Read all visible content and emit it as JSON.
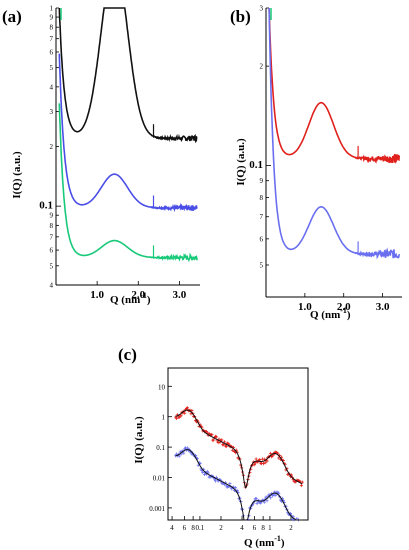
{
  "figure": {
    "panels": [
      {
        "label": "(a)"
      },
      {
        "label": "(b)"
      },
      {
        "label": "(c)"
      }
    ]
  },
  "colors": {
    "black": "#111111",
    "blue": "#4a4ee6",
    "green": "#19c97a",
    "red": "#e0201c",
    "lightblue": "#6a6ff0"
  },
  "chart_data": [
    {
      "type": "line",
      "panel": "(a)",
      "xlabel": "Q (nm",
      "xlabel_sup": "-1",
      "xlabel_tail": ")",
      "ylabel": "I(Q) (a.u.)",
      "xlim": [
        0,
        3.5
      ],
      "xscale": "linear",
      "yscale": "log",
      "ylim": [
        0.04,
        1.0
      ],
      "xticks": [
        {
          "v": 1.0,
          "t": "1.0"
        },
        {
          "v": 2.0,
          "t": "2.0"
        },
        {
          "v": 3.0,
          "t": "3.0"
        }
      ],
      "yticks": [
        {
          "v": 1.0,
          "t": "1"
        },
        {
          "v": 0.9,
          "t": "9"
        },
        {
          "v": 0.8,
          "t": "8"
        },
        {
          "v": 0.7,
          "t": "7"
        },
        {
          "v": 0.6,
          "t": "6"
        },
        {
          "v": 0.5,
          "t": "5"
        },
        {
          "v": 0.4,
          "t": "4"
        },
        {
          "v": 0.3,
          "t": "3"
        },
        {
          "v": 0.2,
          "t": "2"
        },
        {
          "v": 0.1,
          "t": "0.1",
          "major": true
        },
        {
          "v": 0.09,
          "t": "9"
        },
        {
          "v": 0.08,
          "t": "8"
        },
        {
          "v": 0.07,
          "t": "7"
        },
        {
          "v": 0.06,
          "t": "6"
        },
        {
          "v": 0.05,
          "t": "5"
        },
        {
          "v": 0.04,
          "t": "4"
        }
      ],
      "series": [
        {
          "color": "#111111",
          "base": 0.2,
          "peak": 1.75,
          "dip": 0.22,
          "tail": 0.21
        },
        {
          "color": "#4a4ee6",
          "base": 0.09,
          "peak": 0.145,
          "dip": 0.098,
          "tail": 0.094
        },
        {
          "color": "#19c97a",
          "base": 0.052,
          "peak": 0.067,
          "dip": 0.055,
          "tail": 0.052
        }
      ]
    },
    {
      "type": "line",
      "panel": "(b)",
      "xlabel": "Q (nm",
      "xlabel_sup": "-1",
      "xlabel_tail": ")",
      "ylabel": "I(Q) (a.u.)",
      "xlim": [
        0,
        3.5
      ],
      "xscale": "linear",
      "yscale": "log",
      "ylim": [
        0.04,
        0.3
      ],
      "xticks": [
        {
          "v": 1.0,
          "t": "1.0"
        },
        {
          "v": 2.0,
          "t": "2.0"
        },
        {
          "v": 3.0,
          "t": "3.0"
        }
      ],
      "yticks": [
        {
          "v": 0.3,
          "t": "3"
        },
        {
          "v": 0.2,
          "t": "2"
        },
        {
          "v": 0.1,
          "t": "0.1",
          "major": true
        },
        {
          "v": 0.09,
          "t": "9"
        },
        {
          "v": 0.08,
          "t": "8"
        },
        {
          "v": 0.07,
          "t": "7"
        },
        {
          "v": 0.06,
          "t": "6"
        },
        {
          "v": 0.05,
          "t": "5"
        }
      ],
      "series": [
        {
          "color": "#e0201c",
          "base": 0.102,
          "peak": 0.155,
          "dip": 0.105,
          "tail": 0.1
        },
        {
          "color": "#6a6ff0",
          "base": 0.052,
          "peak": 0.075,
          "dip": 0.054,
          "tail": 0.05
        }
      ]
    },
    {
      "type": "scatter",
      "panel": "(c)",
      "xlabel": "Q (nm",
      "xlabel_sup": "-1",
      "xlabel_tail": ")",
      "ylabel": "I(Q) (a.u.)",
      "xscale": "log",
      "yscale": "log",
      "xlim": [
        0.035,
        3.5
      ],
      "ylim": [
        0.0004,
        40
      ],
      "xticks": [
        {
          "v": 0.04,
          "t": "4"
        },
        {
          "v": 0.06,
          "t": "6"
        },
        {
          "v": 0.08,
          "t": "8"
        },
        {
          "v": 0.1,
          "t": "0.1"
        },
        {
          "v": 0.2,
          "t": "2"
        },
        {
          "v": 0.4,
          "t": "4"
        },
        {
          "v": 0.6,
          "t": "6"
        },
        {
          "v": 0.8,
          "t": "8"
        },
        {
          "v": 1.0,
          "t": "1"
        },
        {
          "v": 2.0,
          "t": "2"
        }
      ],
      "yticks": [
        {
          "v": 10,
          "t": "10"
        },
        {
          "v": 1,
          "t": "1"
        },
        {
          "v": 0.1,
          "t": "0.1"
        },
        {
          "v": 0.01,
          "t": "0.01"
        },
        {
          "v": 0.001,
          "t": "0.001"
        }
      ],
      "series": [
        {
          "color": "#e0201c",
          "fit": "#111111",
          "scale": 1.0
        },
        {
          "color": "#6a6ff0",
          "fit": "#111111",
          "scale": 0.05
        }
      ]
    }
  ]
}
